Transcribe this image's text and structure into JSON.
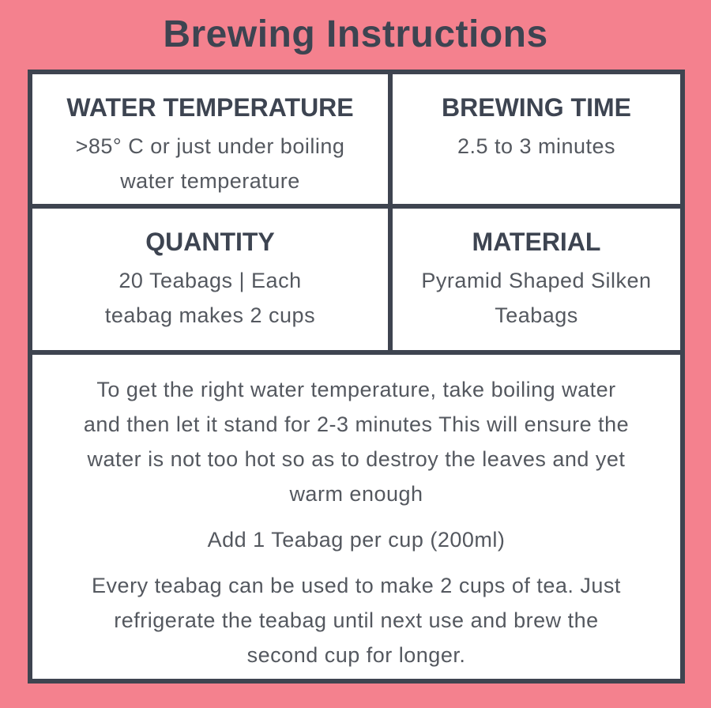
{
  "page": {
    "title": "Brewing Instructions"
  },
  "theme": {
    "background_pink": "#F4818E",
    "border_dark": "#3E4450",
    "heading_text": "#3D4451",
    "body_text": "#54585F",
    "cell_background": "#FFFFFF"
  },
  "cells": [
    {
      "heading": "WATER TEMPERATURE",
      "body_lines": [
        ">85° C or just under boiling",
        "water temperature"
      ]
    },
    {
      "heading": "BREWING TIME",
      "body_lines": [
        "2.5 to 3 minutes"
      ]
    },
    {
      "heading": "QUANTITY",
      "body_lines": [
        "20 Teabags | Each",
        "teabag makes 2 cups"
      ]
    },
    {
      "heading": "MATERIAL",
      "body_lines": [
        "Pyramid Shaped Silken",
        "Teabags"
      ]
    }
  ],
  "notes": [
    {
      "lines": [
        "To get the right water temperature, take boiling water",
        "and then let it stand for 2-3 minutes This will ensure the",
        "water is not too hot so as to destroy the leaves and yet",
        "warm enough"
      ]
    },
    {
      "lines": [
        "Add 1 Teabag per cup (200ml)"
      ]
    },
    {
      "lines": [
        "Every teabag can be used to make 2 cups of tea. Just",
        "refrigerate the teabag until next use and brew the",
        "second cup for longer."
      ]
    }
  ]
}
